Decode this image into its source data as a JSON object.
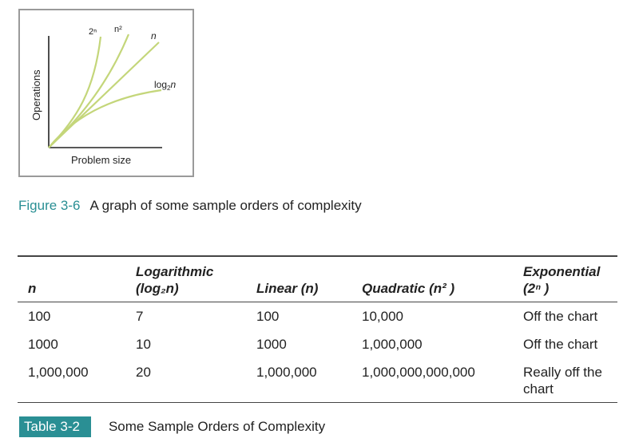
{
  "figure": {
    "axis_ylabel": "Operations",
    "axis_xlabel": "Problem size",
    "curve_labels": {
      "exponential": "2ⁿ",
      "quadratic": "n²",
      "linear": "n",
      "log_base": "log",
      "log_sub": "2",
      "log_var": "n"
    },
    "curve_color": "#c4d67a",
    "number": "Figure 3-6",
    "caption": "A graph of some sample orders of complexity"
  },
  "chart_data": {
    "type": "line",
    "title": "",
    "xlabel": "Problem size",
    "ylabel": "Operations",
    "series": [
      {
        "name": "2ⁿ"
      },
      {
        "name": "n²"
      },
      {
        "name": "n"
      },
      {
        "name": "log₂n"
      }
    ]
  },
  "table": {
    "headers": {
      "n": "n",
      "log_line1": "Logarithmic",
      "log_line2": "(log₂n)",
      "linear": "Linear (n)",
      "quadratic": "Quadratic (n² )",
      "exponential": "Exponential (2ⁿ )"
    },
    "rows": [
      {
        "n": "100",
        "log": "7",
        "linear": "100",
        "quadratic": "10,000",
        "exponential": "Off the chart"
      },
      {
        "n": "1000",
        "log": "10",
        "linear": "1000",
        "quadratic": "1,000,000",
        "exponential": "Off the chart"
      },
      {
        "n": "1,000,000",
        "log": "20",
        "linear": "1,000,000",
        "quadratic": "1,000,000,000,000",
        "exponential": "Really off the chart"
      }
    ],
    "label": "Table 3-2",
    "caption": "Some Sample Orders of Complexity",
    "accent_color": "#2a8f94"
  }
}
